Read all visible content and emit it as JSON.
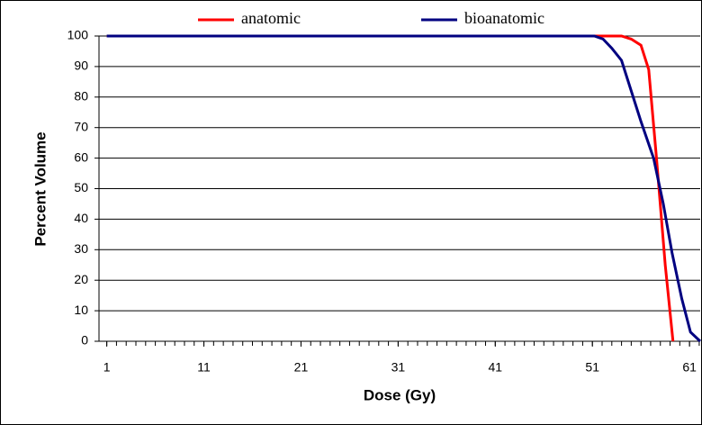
{
  "chart_data": {
    "type": "line",
    "xlabel": "Dose (Gy)",
    "ylabel": "Percent Volume",
    "xlim": [
      0.2,
      62.1
    ],
    "xticks": [
      1,
      11,
      21,
      31,
      41,
      51,
      61
    ],
    "ylim": [
      0,
      100
    ],
    "yticks": [
      0,
      10,
      20,
      30,
      40,
      50,
      60,
      70,
      80,
      90,
      100
    ],
    "grid": true,
    "legend": "top",
    "series": [
      {
        "name": "anatomic",
        "color": "#ff0000",
        "x": [
          1,
          54,
          55,
          56,
          56.8,
          57.6,
          58.5,
          59.3
        ],
        "values": [
          100,
          100,
          99,
          97,
          89,
          60,
          25,
          0
        ]
      },
      {
        "name": "bioanatomic",
        "color": "#000080",
        "x": [
          1,
          51.2,
          52.1,
          53,
          54,
          54.9,
          56,
          57.3,
          58.3,
          59.2,
          60.2,
          61.1,
          62.1
        ],
        "values": [
          100,
          100,
          99,
          96,
          92,
          83,
          72,
          60,
          45,
          29,
          14,
          3,
          0
        ]
      }
    ]
  }
}
